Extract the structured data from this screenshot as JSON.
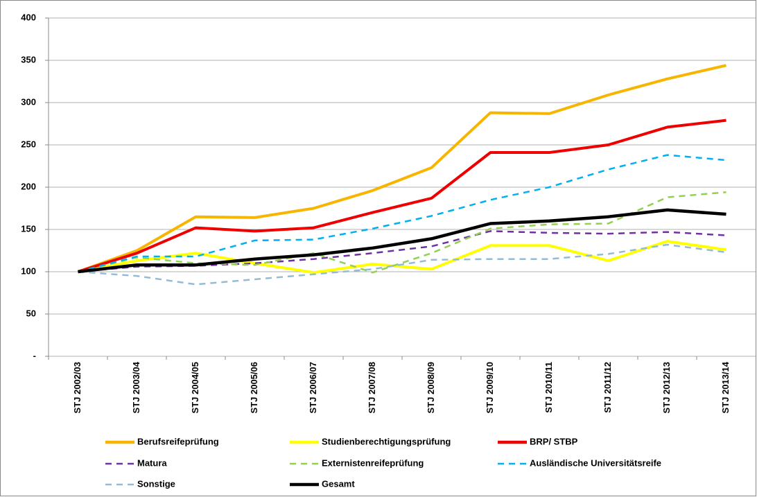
{
  "chart_data": {
    "type": "line",
    "categories": [
      "STJ 2002/03",
      "STJ 2003/04",
      "STJ 2004/05",
      "STJ 2005/06",
      "STJ 2006/07",
      "STJ 2007/08",
      "STJ 2008/09",
      "STJ 2009/10",
      "STJ 2010/11",
      "STJ 2011/12",
      "STJ 2012/13",
      "STJ 2013/14"
    ],
    "series": [
      {
        "name": "Berufsreifeprüfung",
        "color": "#f7b500",
        "dashed": false,
        "values": [
          100,
          125,
          165,
          164,
          175,
          196,
          223,
          288,
          287,
          309,
          328,
          344
        ]
      },
      {
        "name": "Studienberechtigungsprüfung",
        "color": "#ffff00",
        "dashed": false,
        "values": [
          100,
          113,
          122,
          110,
          99,
          109,
          103,
          131,
          131,
          113,
          136,
          126
        ]
      },
      {
        "name": "BRP/ STBP",
        "color": "#ee0000",
        "dashed": false,
        "values": [
          100,
          122,
          152,
          148,
          152,
          170,
          187,
          241,
          241,
          250,
          271,
          279
        ]
      },
      {
        "name": "Matura",
        "color": "#7030a0",
        "dashed": true,
        "values": [
          100,
          106,
          107,
          110,
          115,
          122,
          130,
          148,
          146,
          145,
          147,
          143
        ]
      },
      {
        "name": "Externistenreifeprüfung",
        "color": "#92d050",
        "dashed": true,
        "values": [
          100,
          117,
          110,
          108,
          122,
          99,
          122,
          151,
          156,
          157,
          188,
          194
        ]
      },
      {
        "name": "Ausländische Universitätsreife",
        "color": "#00b0f0",
        "dashed": true,
        "values": [
          100,
          118,
          118,
          137,
          138,
          151,
          166,
          185,
          200,
          221,
          238,
          232
        ]
      },
      {
        "name": "Sonstige",
        "color": "#93bcd4",
        "dashed": true,
        "values": [
          100,
          95,
          85,
          91,
          97,
          103,
          114,
          115,
          115,
          121,
          132,
          123
        ]
      },
      {
        "name": "Gesamt",
        "color": "#000000",
        "dashed": false,
        "values": [
          100,
          108,
          108,
          115,
          120,
          128,
          139,
          157,
          160,
          165,
          173,
          168
        ]
      }
    ],
    "ylim": [
      0,
      400
    ],
    "yticks": [
      {
        "value": 0,
        "label": "-"
      },
      50,
      100,
      150,
      200,
      250,
      300,
      350,
      400
    ],
    "grid": true
  }
}
